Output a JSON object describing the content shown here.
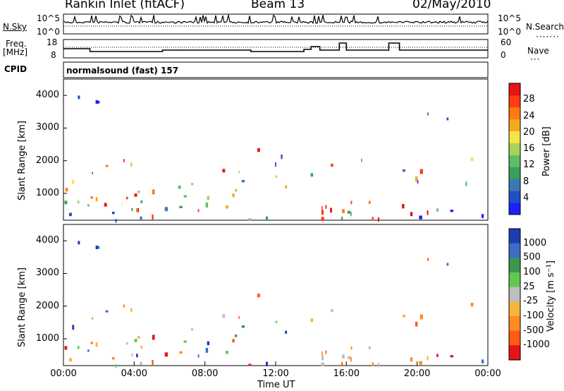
{
  "header": {
    "station": "Rankin Inlet (fitACF)",
    "beam": "Beam 13",
    "date": "02/May/2010"
  },
  "panels": {
    "nsky_label": "N.Sky",
    "nsky_ticks": [
      "10^5",
      "10^0"
    ],
    "nsearch_label": "N.Search",
    "nsearch_ticks": [
      "10^5",
      "10^0"
    ],
    "freq_label": "Freq.",
    "freq_unit": "[MHz]",
    "freq_ticks": [
      "18",
      "8"
    ],
    "nave_label": "Nave",
    "nave_ticks": [
      "60",
      "0"
    ],
    "cpid_label": "CPID",
    "cpid_value": "normalsound (fast) 157"
  },
  "colors": {
    "power": [
      "#1e1eff",
      "#2050c8",
      "#3c78b4",
      "#38a05a",
      "#5fbe64",
      "#a8d25a",
      "#f5e646",
      "#f5aa1e",
      "#ff7a14",
      "#ff3c14",
      "#e61414"
    ],
    "velocity": [
      "#1e3cb4",
      "#3c6ec8",
      "#3c9650",
      "#64c850",
      "#bebebe",
      "#f5b43c",
      "#ff8c1e",
      "#ff5a14",
      "#e61414"
    ]
  },
  "chart_data": [
    {
      "type": "heatmap",
      "name": "power",
      "ylabel": "Slant Range [km]",
      "xlabel": "",
      "ylim": [
        180,
        4500
      ],
      "yticks": [
        "4000",
        "3000",
        "2000",
        "1000"
      ],
      "colorbar_label": "Power [dB]",
      "colorbar_ticks": [
        "28",
        "24",
        "20",
        "16",
        "12",
        "8",
        "4"
      ],
      "colorbar_range": [
        0,
        32
      ]
    },
    {
      "type": "heatmap",
      "name": "velocity",
      "ylabel": "Slant Range [km]",
      "xlabel": "Time UT",
      "ylim": [
        180,
        4500
      ],
      "yticks": [
        "4000",
        "3000",
        "2000",
        "1000"
      ],
      "xticks": [
        "00:00",
        "04:00",
        "08:00",
        "12:00",
        "16:00",
        "20:00",
        "00:00"
      ],
      "colorbar_label": "Velocity [m s⁻¹]",
      "colorbar_ticks": [
        "1000",
        "500",
        "100",
        "25",
        "-25",
        "-100",
        "-500",
        "-1000"
      ]
    }
  ]
}
